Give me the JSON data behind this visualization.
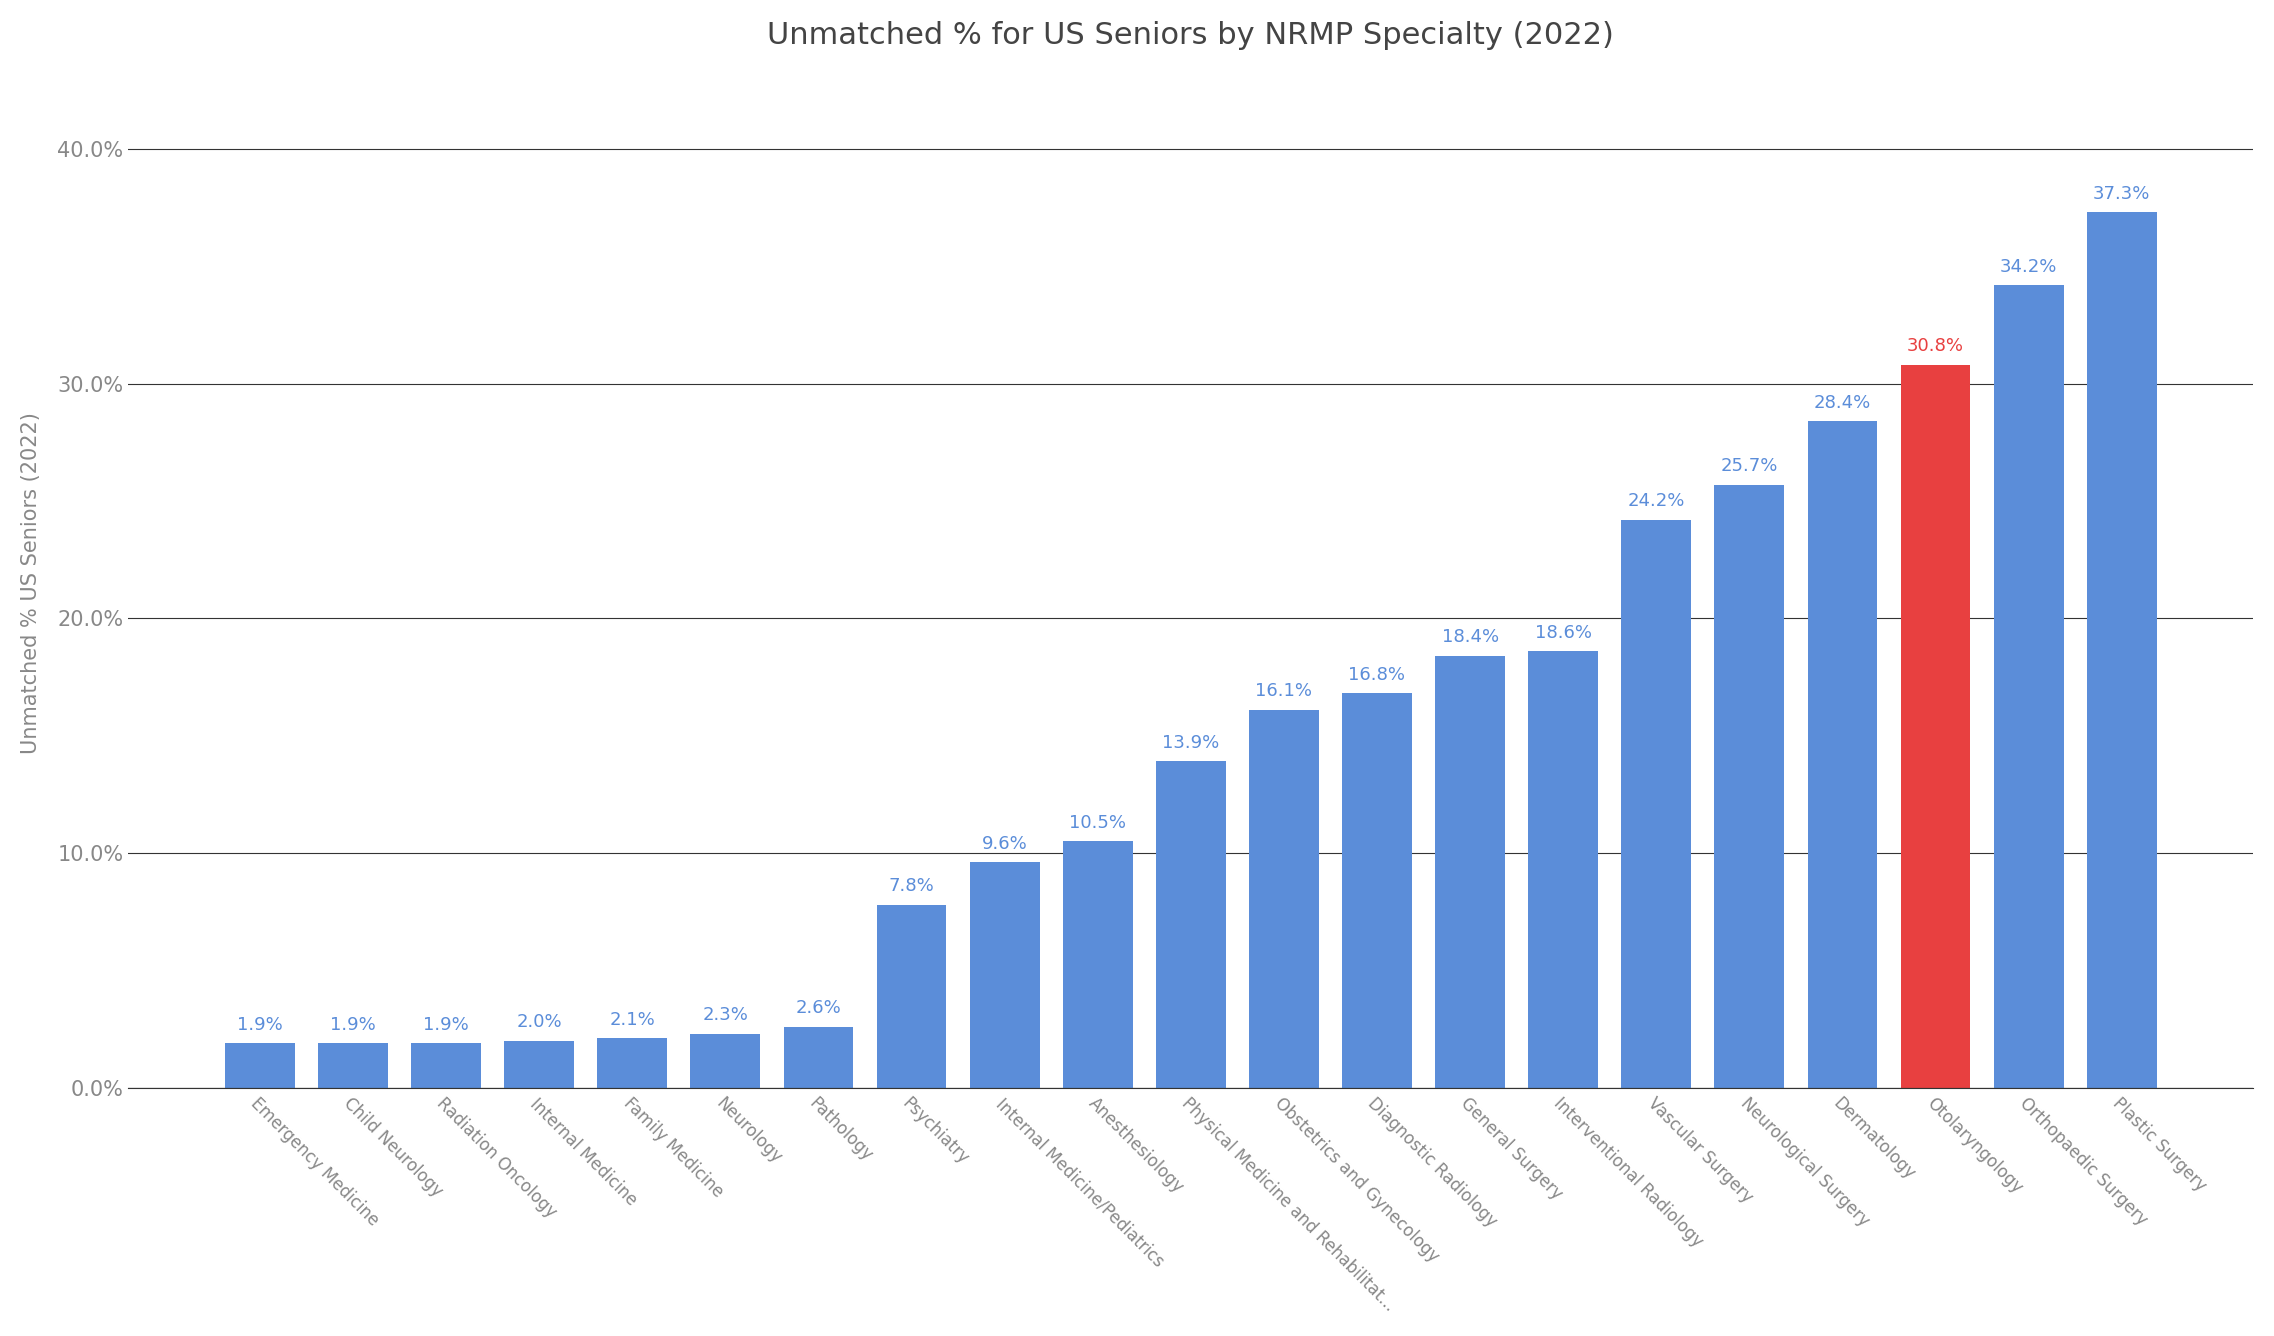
{
  "title": "Unmatched % for US Seniors by NRMP Specialty (2022)",
  "ylabel": "Unmatched % US Seniors (2022)",
  "categories": [
    "Emergency Medicine",
    "Child Neurology",
    "Radiation Oncology",
    "Internal Medicine",
    "Family Medicine",
    "Neurology",
    "Pathology",
    "Psychiatry",
    "Internal Medicine/Pediatrics",
    "Anesthesiology",
    "Physical Medicine and Rehabilitat...",
    "Obstetrics and Gynecology",
    "Diagnostic Radiology",
    "General Surgery",
    "Interventional Radiology",
    "Vascular Surgery",
    "Neurological Surgery",
    "Dermatology",
    "Otolaryngology",
    "Orthopaedic Surgery",
    "Plastic Surgery"
  ],
  "values": [
    1.9,
    1.9,
    1.9,
    2.0,
    2.1,
    2.3,
    2.6,
    7.8,
    9.6,
    10.5,
    13.9,
    16.1,
    16.8,
    18.4,
    18.6,
    24.2,
    25.7,
    28.4,
    30.8,
    34.2,
    37.3
  ],
  "bar_colors": [
    "#5b8dd9",
    "#5b8dd9",
    "#5b8dd9",
    "#5b8dd9",
    "#5b8dd9",
    "#5b8dd9",
    "#5b8dd9",
    "#5b8dd9",
    "#5b8dd9",
    "#5b8dd9",
    "#5b8dd9",
    "#5b8dd9",
    "#5b8dd9",
    "#5b8dd9",
    "#5b8dd9",
    "#5b8dd9",
    "#5b8dd9",
    "#5b8dd9",
    "#e84040",
    "#5b8dd9",
    "#5b8dd9"
  ],
  "label_colors": [
    "#5b8dd9",
    "#5b8dd9",
    "#5b8dd9",
    "#5b8dd9",
    "#5b8dd9",
    "#5b8dd9",
    "#5b8dd9",
    "#5b8dd9",
    "#5b8dd9",
    "#5b8dd9",
    "#5b8dd9",
    "#5b8dd9",
    "#5b8dd9",
    "#5b8dd9",
    "#5b8dd9",
    "#5b8dd9",
    "#5b8dd9",
    "#5b8dd9",
    "#e84040",
    "#5b8dd9",
    "#5b8dd9"
  ],
  "ylim": [
    0,
    43
  ],
  "yticks": [
    0.0,
    10.0,
    20.0,
    30.0,
    40.0
  ],
  "ytick_labels": [
    "0.0%",
    "10.0%",
    "20.0%",
    "30.0%",
    "40.0%"
  ],
  "background_color": "#FFFFFF",
  "title_fontsize": 22,
  "label_fontsize": 13,
  "ylabel_fontsize": 15,
  "xtick_fontsize": 12,
  "ytick_fontsize": 15,
  "grid_color": "#333333",
  "grid_linewidth": 0.8,
  "bar_width": 0.75
}
